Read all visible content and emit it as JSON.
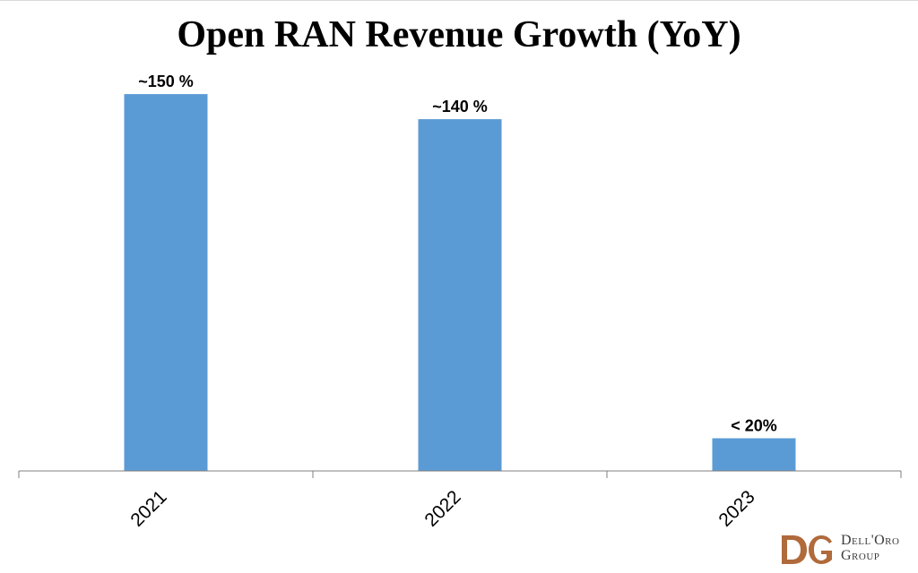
{
  "chart_data": {
    "type": "bar",
    "title": "Open RAN Revenue Growth (YoY)",
    "categories": [
      "2021",
      "2022",
      "2023"
    ],
    "values": [
      150,
      140,
      13
    ],
    "data_labels": [
      "~150 %",
      "~140 %",
      "< 20%"
    ],
    "ylim": [
      0,
      160
    ],
    "grid": false,
    "legend": "none",
    "bar_color": "#5b9bd5",
    "axis_color": "#7f7f7f"
  },
  "brand": {
    "line1": "Dell'Oro",
    "line2": "Group",
    "color": "#b06a3b"
  }
}
